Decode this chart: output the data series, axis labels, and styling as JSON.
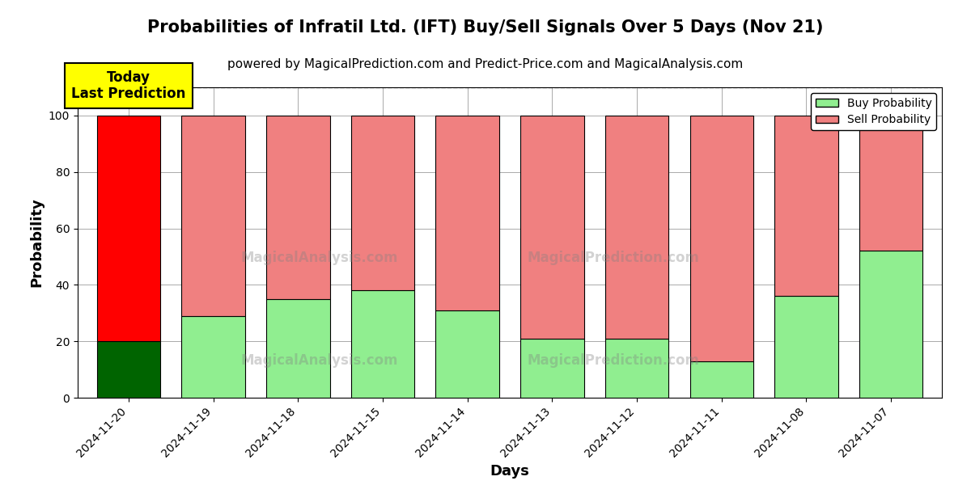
{
  "title": "Probabilities of Infratil Ltd. (IFT) Buy/Sell Signals Over 5 Days (Nov 21)",
  "subtitle": "powered by MagicalPrediction.com and Predict-Price.com and MagicalAnalysis.com",
  "xlabel": "Days",
  "ylabel": "Probability",
  "categories": [
    "2024-11-20",
    "2024-11-19",
    "2024-11-18",
    "2024-11-15",
    "2024-11-14",
    "2024-11-13",
    "2024-11-12",
    "2024-11-11",
    "2024-11-08",
    "2024-11-07"
  ],
  "buy_values": [
    20,
    29,
    35,
    38,
    31,
    21,
    21,
    13,
    36,
    52
  ],
  "sell_values": [
    80,
    71,
    65,
    62,
    69,
    79,
    79,
    87,
    64,
    48
  ],
  "today_buy_color": "#006400",
  "today_sell_color": "#FF0000",
  "buy_color": "#90EE90",
  "sell_color": "#F08080",
  "bar_edge_color": "#000000",
  "today_annotation_bg": "#FFFF00",
  "today_annotation_text": "Today\nLast Prediction",
  "legend_buy_label": "Buy Probability",
  "legend_sell_label": "Sell Probability",
  "ylim": [
    0,
    110
  ],
  "dashed_line_y": 110,
  "watermark_texts": [
    "MagicalAnalysis.com",
    "MagicalPrediction.com"
  ],
  "grid_color": "#AAAAAA",
  "title_fontsize": 15,
  "subtitle_fontsize": 11,
  "axis_label_fontsize": 13,
  "tick_fontsize": 10,
  "bar_width": 0.75
}
